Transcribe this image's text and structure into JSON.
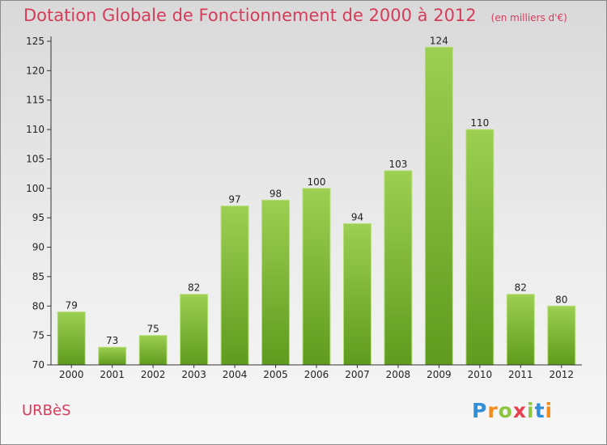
{
  "title": "Dotation Globale de Fonctionnement de 2000 à 2012",
  "unit_note": "(en milliers d'€)",
  "commune": "URBèS",
  "brand": {
    "letters": [
      "P",
      "r",
      "o",
      "x",
      "i",
      "t",
      "i"
    ],
    "colors": [
      "#2f8fd8",
      "#f28c1c",
      "#8dc63f",
      "#e8414e",
      "#8dc63f",
      "#2f8fd8",
      "#f28c1c"
    ]
  },
  "colors": {
    "title": "#d63c5a",
    "bar_top": "#9ccf52",
    "bar_bottom": "#5f9b1e",
    "axis": "#333333"
  },
  "chart_data": {
    "type": "bar",
    "categories": [
      "2000",
      "2001",
      "2002",
      "2003",
      "2004",
      "2005",
      "2006",
      "2007",
      "2008",
      "2009",
      "2010",
      "2011",
      "2012"
    ],
    "values": [
      79,
      73,
      75,
      82,
      97,
      98,
      100,
      94,
      103,
      124,
      110,
      82,
      80
    ],
    "title": "Dotation Globale de Fonctionnement de 2000 à 2012",
    "xlabel": "",
    "ylabel": "",
    "ylim": [
      70,
      125
    ],
    "yticks": [
      70,
      75,
      80,
      85,
      90,
      95,
      100,
      105,
      110,
      115,
      120,
      125
    ],
    "grid": false,
    "legend": "none"
  }
}
